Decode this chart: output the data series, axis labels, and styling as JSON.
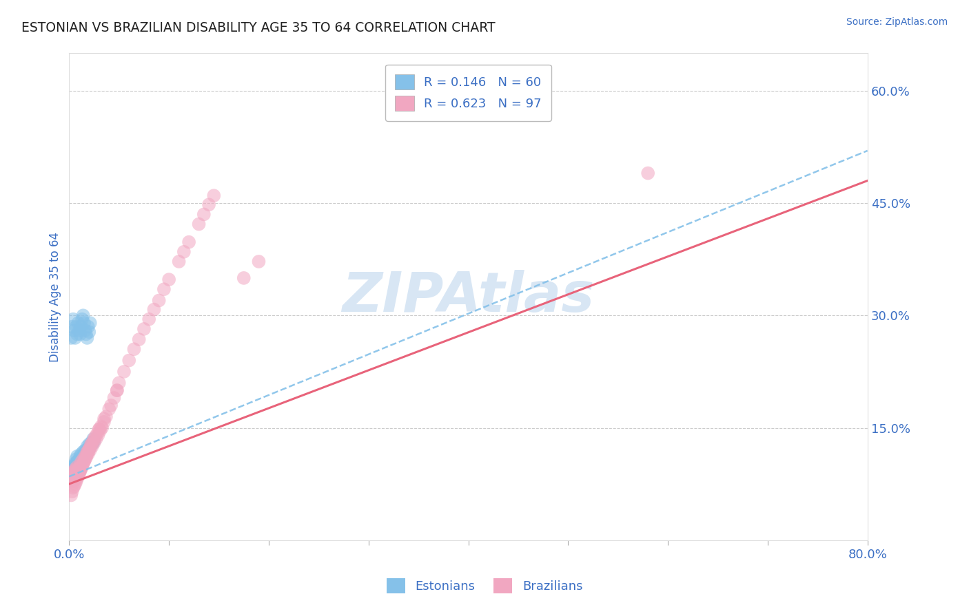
{
  "title": "ESTONIAN VS BRAZILIAN DISABILITY AGE 35 TO 64 CORRELATION CHART",
  "source_text": "Source: ZipAtlas.com",
  "ylabel": "Disability Age 35 to 64",
  "xlim": [
    0.0,
    0.8
  ],
  "ylim": [
    0.0,
    0.65
  ],
  "ytick_positions": [
    0.15,
    0.3,
    0.45,
    0.6
  ],
  "ytick_labels": [
    "15.0%",
    "30.0%",
    "45.0%",
    "60.0%"
  ],
  "estonian_R": 0.146,
  "estonian_N": 60,
  "brazilian_R": 0.623,
  "brazilian_N": 97,
  "estonian_color": "#85C1E9",
  "brazilian_color": "#F1A7C1",
  "estonian_line_color": "#85C1E9",
  "brazilian_line_color": "#E8637A",
  "legend_text_color": "#3B6FC4",
  "tick_label_color": "#3B6FC4",
  "grid_color": "#CCCCCC",
  "watermark": "ZIPAtlas",
  "watermark_color": "#C8DCF0",
  "background_color": "#FFFFFF",
  "estonian_x": [
    0.002,
    0.003,
    0.003,
    0.004,
    0.004,
    0.005,
    0.005,
    0.005,
    0.006,
    0.006,
    0.006,
    0.007,
    0.007,
    0.007,
    0.007,
    0.008,
    0.008,
    0.008,
    0.008,
    0.009,
    0.009,
    0.01,
    0.01,
    0.011,
    0.011,
    0.012,
    0.012,
    0.013,
    0.014,
    0.015,
    0.016,
    0.017,
    0.018,
    0.019,
    0.02,
    0.021,
    0.022,
    0.023,
    0.024,
    0.025,
    0.002,
    0.003,
    0.004,
    0.005,
    0.006,
    0.007,
    0.008,
    0.009,
    0.01,
    0.011,
    0.012,
    0.013,
    0.014,
    0.015,
    0.016,
    0.017,
    0.018,
    0.019,
    0.02,
    0.021
  ],
  "estonian_y": [
    0.085,
    0.09,
    0.095,
    0.092,
    0.098,
    0.088,
    0.095,
    0.1,
    0.092,
    0.097,
    0.103,
    0.089,
    0.095,
    0.1,
    0.108,
    0.093,
    0.098,
    0.105,
    0.112,
    0.095,
    0.102,
    0.098,
    0.108,
    0.103,
    0.112,
    0.107,
    0.115,
    0.11,
    0.118,
    0.115,
    0.12,
    0.118,
    0.125,
    0.122,
    0.128,
    0.125,
    0.13,
    0.128,
    0.135,
    0.132,
    0.27,
    0.285,
    0.295,
    0.28,
    0.27,
    0.285,
    0.275,
    0.29,
    0.28,
    0.275,
    0.285,
    0.295,
    0.3,
    0.29,
    0.28,
    0.275,
    0.27,
    0.285,
    0.278,
    0.29
  ],
  "brazilian_x": [
    0.002,
    0.003,
    0.003,
    0.004,
    0.004,
    0.005,
    0.005,
    0.005,
    0.006,
    0.006,
    0.006,
    0.007,
    0.007,
    0.007,
    0.008,
    0.008,
    0.008,
    0.009,
    0.009,
    0.01,
    0.01,
    0.011,
    0.011,
    0.012,
    0.012,
    0.013,
    0.014,
    0.015,
    0.016,
    0.017,
    0.018,
    0.019,
    0.02,
    0.021,
    0.022,
    0.023,
    0.024,
    0.025,
    0.026,
    0.027,
    0.028,
    0.029,
    0.03,
    0.031,
    0.032,
    0.033,
    0.035,
    0.037,
    0.04,
    0.042,
    0.045,
    0.048,
    0.05,
    0.055,
    0.06,
    0.065,
    0.07,
    0.075,
    0.08,
    0.085,
    0.09,
    0.095,
    0.1,
    0.11,
    0.115,
    0.12,
    0.13,
    0.135,
    0.14,
    0.145,
    0.002,
    0.003,
    0.004,
    0.005,
    0.006,
    0.007,
    0.008,
    0.009,
    0.01,
    0.011,
    0.012,
    0.013,
    0.014,
    0.015,
    0.016,
    0.017,
    0.018,
    0.019,
    0.02,
    0.022,
    0.025,
    0.03,
    0.035,
    0.048,
    0.175,
    0.19,
    0.58
  ],
  "brazilian_y": [
    0.078,
    0.082,
    0.088,
    0.083,
    0.09,
    0.08,
    0.086,
    0.092,
    0.083,
    0.089,
    0.095,
    0.082,
    0.088,
    0.094,
    0.086,
    0.092,
    0.098,
    0.088,
    0.095,
    0.09,
    0.096,
    0.093,
    0.1,
    0.097,
    0.104,
    0.1,
    0.108,
    0.105,
    0.112,
    0.11,
    0.118,
    0.115,
    0.122,
    0.12,
    0.128,
    0.125,
    0.132,
    0.13,
    0.138,
    0.135,
    0.142,
    0.14,
    0.148,
    0.146,
    0.152,
    0.15,
    0.158,
    0.165,
    0.175,
    0.18,
    0.19,
    0.2,
    0.21,
    0.225,
    0.24,
    0.255,
    0.268,
    0.282,
    0.295,
    0.308,
    0.32,
    0.335,
    0.348,
    0.372,
    0.385,
    0.398,
    0.422,
    0.435,
    0.448,
    0.46,
    0.06,
    0.065,
    0.07,
    0.072,
    0.075,
    0.078,
    0.082,
    0.085,
    0.088,
    0.092,
    0.095,
    0.098,
    0.102,
    0.105,
    0.108,
    0.112,
    0.115,
    0.118,
    0.121,
    0.127,
    0.135,
    0.148,
    0.162,
    0.2,
    0.35,
    0.372,
    0.49
  ],
  "estonian_line_x0": 0.0,
  "estonian_line_x1": 0.8,
  "estonian_line_y0": 0.085,
  "estonian_line_y1": 0.52,
  "brazilian_line_x0": 0.0,
  "brazilian_line_x1": 0.8,
  "brazilian_line_y0": 0.075,
  "brazilian_line_y1": 0.48
}
